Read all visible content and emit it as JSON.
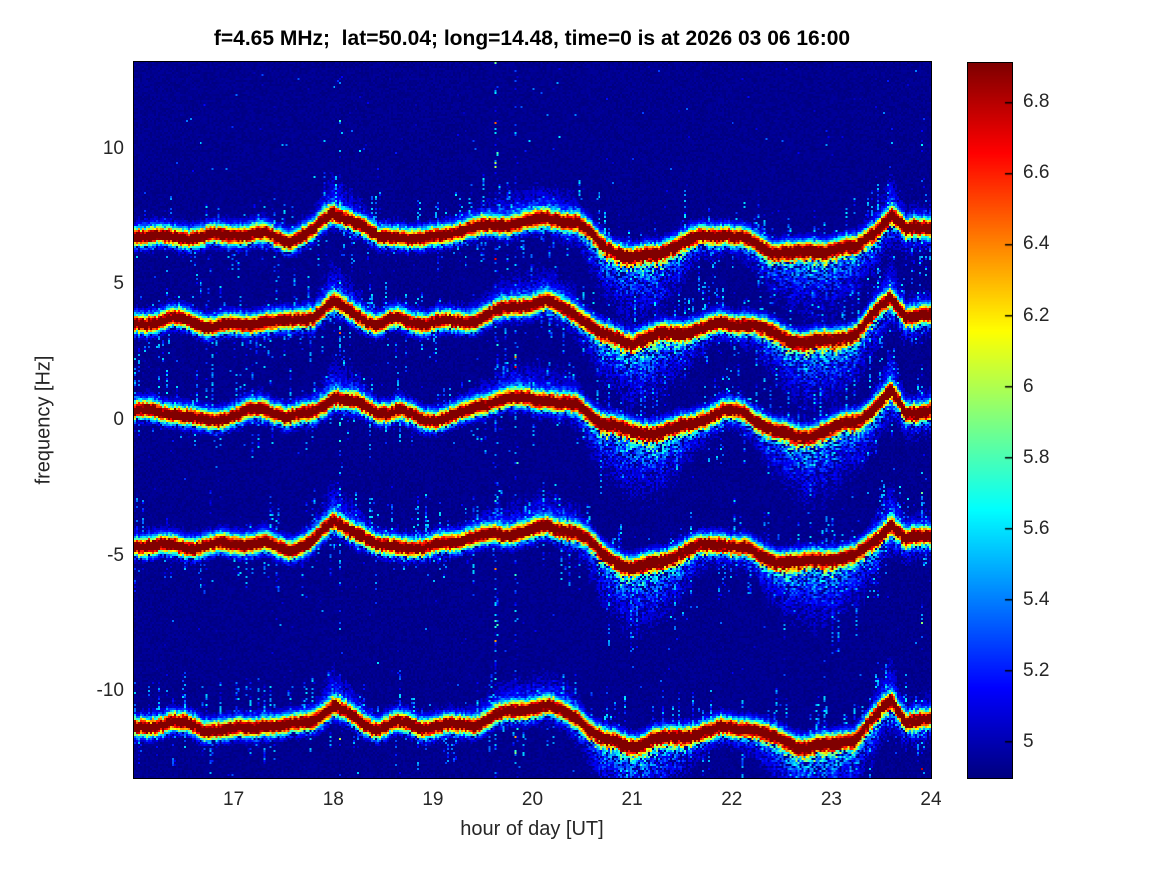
{
  "figure": {
    "kind": "matlab-style-spectrogram-figure",
    "background": "#ffffff"
  },
  "chart_data": {
    "type": "heatmap",
    "title": "f=4.65 MHz;  lat=50.04; long=14.48, time=0 is at 2026 03 06 16:00",
    "xlabel": "hour of day [UT]",
    "ylabel": "frequency [Hz]",
    "xlim": [
      16,
      24
    ],
    "ylim": [
      -13.2,
      13.2
    ],
    "xticks": [
      17,
      18,
      19,
      20,
      21,
      22,
      23,
      24
    ],
    "xtick_labels": [
      "17",
      "18",
      "19",
      "20",
      "21",
      "22",
      "23",
      "24"
    ],
    "yticks": [
      10,
      5,
      0,
      -5,
      -10
    ],
    "ytick_labels": [
      "10",
      "5",
      "0",
      "-5",
      "-10"
    ],
    "grid": false,
    "legend": null,
    "colormap": "jet",
    "colorbar": {
      "position": "right",
      "range": [
        4.9,
        6.91
      ],
      "ticks": [
        6.8,
        6.6,
        6.4,
        6.2,
        6.0,
        5.8,
        5.6,
        5.4,
        5.2,
        5.0
      ],
      "tick_labels": [
        "6.8",
        "6.6",
        "6.4",
        "6.2",
        "6",
        "5.8",
        "5.6",
        "5.4",
        "5.2",
        "5"
      ]
    },
    "background_value": 4.9,
    "peak_value": 6.9,
    "bands": [
      {
        "name": "doppler-trace-1",
        "center_hz_at_start": 6.85
      },
      {
        "name": "doppler-trace-2",
        "center_hz_at_start": 3.65
      },
      {
        "name": "doppler-trace-3",
        "center_hz_at_start": 0.25
      },
      {
        "name": "doppler-trace-4",
        "center_hz_at_start": -4.55
      },
      {
        "name": "doppler-trace-5",
        "center_hz_at_start": -11.25
      }
    ],
    "common_doppler_wiggle_keypoints_hour_dhz": [
      [
        16.0,
        0.0
      ],
      [
        16.4,
        0.05
      ],
      [
        16.7,
        -0.15
      ],
      [
        17.0,
        -0.05
      ],
      [
        17.3,
        0.1
      ],
      [
        17.55,
        -0.1
      ],
      [
        17.8,
        0.15
      ],
      [
        18.0,
        0.75
      ],
      [
        18.2,
        0.45
      ],
      [
        18.45,
        -0.05
      ],
      [
        18.65,
        0.1
      ],
      [
        18.9,
        -0.15
      ],
      [
        19.15,
        0.0
      ],
      [
        19.4,
        0.15
      ],
      [
        19.65,
        0.45
      ],
      [
        19.9,
        0.55
      ],
      [
        20.15,
        0.65
      ],
      [
        20.45,
        0.35
      ],
      [
        20.7,
        -0.35
      ],
      [
        21.0,
        -0.75
      ],
      [
        21.3,
        -0.55
      ],
      [
        21.6,
        -0.25
      ],
      [
        21.9,
        0.05
      ],
      [
        22.15,
        -0.05
      ],
      [
        22.4,
        -0.5
      ],
      [
        22.7,
        -0.75
      ],
      [
        23.0,
        -0.55
      ],
      [
        23.25,
        -0.35
      ],
      [
        23.45,
        0.3
      ],
      [
        23.6,
        0.85
      ],
      [
        23.75,
        0.15
      ],
      [
        24.0,
        0.25
      ]
    ],
    "downward_spread_keypoints_hour_hz": [
      [
        16.0,
        0.45
      ],
      [
        17.0,
        0.5
      ],
      [
        18.0,
        0.6
      ],
      [
        18.5,
        0.5
      ],
      [
        19.0,
        0.5
      ],
      [
        19.5,
        0.5
      ],
      [
        20.0,
        0.6
      ],
      [
        20.4,
        0.8
      ],
      [
        20.7,
        1.8
      ],
      [
        21.0,
        2.4
      ],
      [
        21.3,
        2.2
      ],
      [
        21.6,
        1.2
      ],
      [
        21.9,
        0.7
      ],
      [
        22.2,
        0.9
      ],
      [
        22.5,
        1.8
      ],
      [
        22.8,
        2.4
      ],
      [
        23.1,
        2.2
      ],
      [
        23.4,
        1.6
      ],
      [
        23.6,
        1.1
      ],
      [
        23.8,
        0.9
      ],
      [
        24.0,
        0.8
      ]
    ],
    "interference_lines": [
      {
        "hour": 18.05,
        "strength": 0.45
      },
      {
        "hour": 19.63,
        "strength": 0.9
      },
      {
        "hour": 19.82,
        "strength": 0.7
      },
      {
        "hour": 23.9,
        "strength": 0.3
      }
    ]
  }
}
